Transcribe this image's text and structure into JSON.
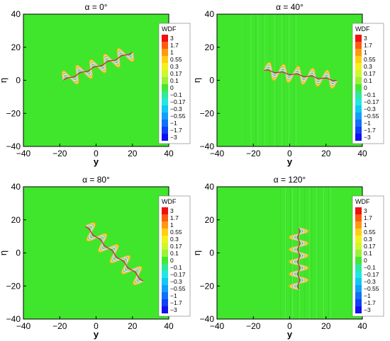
{
  "colors": {
    "field": "#3fe62c",
    "frame": "#000000"
  },
  "legend": {
    "title": "WDF",
    "levels": [
      "3",
      "1.7",
      "1",
      "0.55",
      "0.3",
      "0.17",
      "0.1",
      "0",
      "−0.1",
      "−0.17",
      "−0.3",
      "−0.55",
      "−1",
      "−1.7",
      "−3"
    ],
    "colors": [
      "#f01010",
      "#ff5a10",
      "#ff9a10",
      "#ffce10",
      "#f4f020",
      "#cdf82a",
      "#9bf03a",
      "#44e830",
      "#30e898",
      "#20e8e0",
      "#10c8f4",
      "#10a0f8",
      "#1070f8",
      "#1040f8",
      "#1010f0"
    ]
  },
  "chart_data": [
    {
      "type": "heatmap",
      "title": "α = 0°",
      "xlabel": "y",
      "ylabel": "η",
      "xlim": [
        -40,
        40
      ],
      "ylim": [
        -40,
        40
      ],
      "xticks": [
        "−40",
        "−20",
        "0",
        "20",
        "40"
      ],
      "yticks": [
        "40",
        "20",
        "0",
        "−20",
        "−40"
      ],
      "pattern": {
        "start": [
          -18,
          0
        ],
        "end": [
          20,
          17
        ],
        "loops": 5,
        "amplitude": 5,
        "vertical_streaks": false
      }
    },
    {
      "type": "heatmap",
      "title": "α = 40°",
      "xlabel": "y",
      "ylabel": "η",
      "xlim": [
        -40,
        40
      ],
      "ylim": [
        -40,
        40
      ],
      "xticks": [
        "−40",
        "−20",
        "0",
        "20",
        "40"
      ],
      "yticks": [
        "40",
        "20",
        "0",
        "−20",
        "−40"
      ],
      "pattern": {
        "start": [
          -14,
          6
        ],
        "end": [
          26,
          0
        ],
        "loops": 5,
        "amplitude": 5,
        "vertical_streaks": true
      }
    },
    {
      "type": "heatmap",
      "title": "α = 80°",
      "xlabel": "y",
      "ylabel": "η",
      "xlim": [
        -40,
        40
      ],
      "ylim": [
        -40,
        40
      ],
      "xticks": [
        "−40",
        "−20",
        "0",
        "20",
        "40"
      ],
      "yticks": [
        "40",
        "20",
        "0",
        "−20",
        "−40"
      ],
      "pattern": {
        "start": [
          -6,
          16
        ],
        "end": [
          26,
          -17
        ],
        "loops": 5,
        "amplitude": 5,
        "vertical_streaks": false
      }
    },
    {
      "type": "heatmap",
      "title": "α = 120°",
      "xlabel": "y",
      "ylabel": "η",
      "xlim": [
        -40,
        40
      ],
      "ylim": [
        -40,
        40
      ],
      "xticks": [
        "−40",
        "−20",
        "0",
        "20",
        "40"
      ],
      "yticks": [
        "40",
        "20",
        "0",
        "−20",
        "−40"
      ],
      "pattern": {
        "start": [
          5,
          15
        ],
        "end": [
          5,
          -22
        ],
        "loops": 5,
        "amplitude": 5,
        "vertical_streaks": true
      }
    }
  ]
}
